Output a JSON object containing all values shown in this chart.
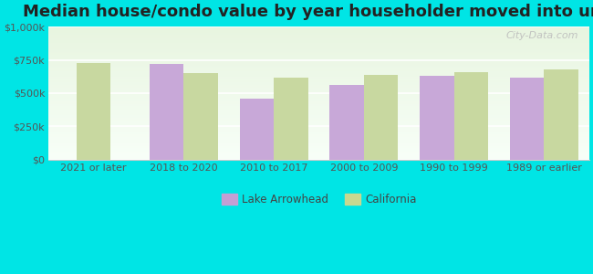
{
  "title": "Median house/condo value by year householder moved into unit",
  "categories": [
    "2021 or later",
    "2018 to 2020",
    "2010 to 2017",
    "2000 to 2009",
    "1990 to 1999",
    "1989 or earlier"
  ],
  "lake_arrowhead": [
    0,
    720000,
    460000,
    560000,
    630000,
    620000
  ],
  "california": [
    725000,
    650000,
    620000,
    635000,
    660000,
    680000
  ],
  "lake_arrowhead_has_bar": [
    false,
    true,
    true,
    true,
    true,
    true
  ],
  "california_has_bar": [
    true,
    true,
    true,
    true,
    true,
    true
  ],
  "ylim": [
    0,
    1000000
  ],
  "yticks": [
    0,
    250000,
    500000,
    750000,
    1000000
  ],
  "ytick_labels": [
    "$0",
    "$250k",
    "$500k",
    "$750k",
    "$1,000k"
  ],
  "bar_color_lake": "#c8a8d8",
  "bar_color_ca": "#c8d8a0",
  "background_color": "#00e5e5",
  "legend_lake": "Lake Arrowhead",
  "legend_ca": "California",
  "legend_lake_color": "#c49fd4",
  "legend_ca_color": "#c8d890",
  "watermark": "City-Data.com",
  "bar_width": 0.38,
  "title_fontsize": 13,
  "tick_fontsize": 8,
  "xlabel_fontsize": 8
}
